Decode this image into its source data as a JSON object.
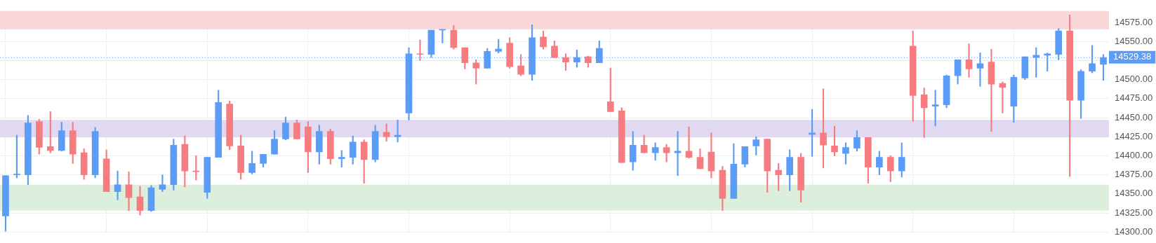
{
  "chart_data": {
    "type": "candlestick",
    "categories": [
      null,
      null,
      null,
      null,
      null,
      null,
      null,
      null,
      null,
      null,
      null,
      null,
      null,
      null,
      null,
      null,
      null,
      null,
      null,
      null,
      null,
      null,
      null,
      null,
      null,
      null,
      null,
      null,
      null,
      null,
      null,
      null,
      null,
      null,
      null,
      null,
      null,
      null,
      null,
      null,
      null,
      null,
      null,
      null,
      null,
      null,
      null,
      null,
      null,
      null,
      null,
      null,
      null,
      null,
      null,
      null,
      null,
      null,
      null,
      null,
      null,
      null,
      null,
      null,
      null,
      null,
      null,
      null,
      null,
      null,
      null,
      null,
      null,
      null,
      null,
      null,
      null,
      null,
      null,
      null,
      null,
      null,
      null,
      null,
      null,
      null,
      null,
      null,
      null,
      null,
      null,
      null,
      null,
      null,
      null,
      null,
      null,
      null,
      null
    ],
    "ohlc": [
      [
        14321,
        14374,
        14301,
        14374
      ],
      [
        14375,
        14427,
        14371,
        14376
      ],
      [
        14375,
        14453,
        14362,
        14443
      ],
      [
        14445,
        14448,
        14402,
        14411
      ],
      [
        14412,
        14458,
        14404,
        14407
      ],
      [
        14407,
        14444,
        14406,
        14433
      ],
      [
        14433,
        14444,
        14390,
        14402
      ],
      [
        14404,
        14409,
        14369,
        14375
      ],
      [
        14375,
        14437,
        14371,
        14432
      ],
      [
        14396,
        14408,
        14353,
        14353
      ],
      [
        14353,
        14380,
        14342,
        14362
      ],
      [
        14362,
        14379,
        14328,
        14345
      ],
      [
        14346,
        14360,
        14322,
        14328
      ],
      [
        14328,
        14361,
        14327,
        14358
      ],
      [
        14356,
        14375,
        14353,
        14362
      ],
      [
        14362,
        14422,
        14355,
        14414
      ],
      [
        14415,
        14426,
        14359,
        14380
      ],
      [
        14380,
        14400,
        14368,
        14379
      ],
      [
        14352,
        14398,
        14344,
        14398
      ],
      [
        14398,
        14486,
        14398,
        14470
      ],
      [
        14468,
        14472,
        14408,
        14413
      ],
      [
        14413,
        14427,
        14369,
        14378
      ],
      [
        14378,
        14406,
        14376,
        14390
      ],
      [
        14390,
        14402,
        14385,
        14402
      ],
      [
        14402,
        14433,
        14402,
        14422
      ],
      [
        14422,
        14451,
        14421,
        14443
      ],
      [
        14443,
        14447,
        14422,
        14422
      ],
      [
        14438,
        14445,
        14378,
        14405
      ],
      [
        14405,
        14440,
        14389,
        14432
      ],
      [
        14432,
        14435,
        14389,
        14396
      ],
      [
        14396,
        14407,
        14385,
        14398
      ],
      [
        14398,
        14426,
        14389,
        14418
      ],
      [
        14418,
        14421,
        14364,
        14395
      ],
      [
        14395,
        14440,
        14392,
        14432
      ],
      [
        14431,
        14442,
        14419,
        14425
      ],
      [
        14425,
        14447,
        14418,
        14427
      ],
      [
        14456,
        14542,
        14447,
        14534
      ],
      [
        14534,
        14552,
        14525,
        14533
      ],
      [
        14533,
        14565,
        14529,
        14565
      ],
      [
        14565,
        14566,
        14548,
        14565
      ],
      [
        14565,
        14571,
        14540,
        14542
      ],
      [
        14542,
        14542,
        14514,
        14522
      ],
      [
        14522,
        14526,
        14494,
        14515
      ],
      [
        14515,
        14541,
        14515,
        14537
      ],
      [
        14537,
        14553,
        14535,
        14540
      ],
      [
        14548,
        14555,
        14515,
        14517
      ],
      [
        14518,
        14533,
        14505,
        14507
      ],
      [
        14507,
        14572,
        14499,
        14555
      ],
      [
        14556,
        14564,
        14540,
        14543
      ],
      [
        14544,
        14551,
        14529,
        14529
      ],
      [
        14529,
        14534,
        14512,
        14523
      ],
      [
        14523,
        14539,
        14516,
        14529
      ],
      [
        14530,
        14531,
        14516,
        14522
      ],
      [
        14522,
        14551,
        14522,
        14541
      ],
      [
        14471,
        14515,
        14458,
        14458
      ],
      [
        14459,
        14463,
        14391,
        14391
      ],
      [
        14392,
        14432,
        14381,
        14414
      ],
      [
        14414,
        14427,
        14404,
        14404
      ],
      [
        14404,
        14417,
        14394,
        14411
      ],
      [
        14411,
        14415,
        14392,
        14404
      ],
      [
        14404,
        14432,
        14374,
        14406
      ],
      [
        14406,
        14438,
        14397,
        14398
      ],
      [
        14398,
        14409,
        14383,
        14383
      ],
      [
        14405,
        14430,
        14371,
        14380
      ],
      [
        14381,
        14386,
        14328,
        14344
      ],
      [
        14344,
        14416,
        14344,
        14389
      ],
      [
        14389,
        14412,
        14385,
        14412
      ],
      [
        14413,
        14425,
        14401,
        14421
      ],
      [
        14422,
        14422,
        14352,
        14380
      ],
      [
        14381,
        14390,
        14354,
        14375
      ],
      [
        14375,
        14408,
        14354,
        14398
      ],
      [
        14398,
        14403,
        14339,
        14355
      ],
      [
        14428,
        14461,
        14399,
        14430
      ],
      [
        14430,
        14488,
        14384,
        14414
      ],
      [
        14413,
        14439,
        14400,
        14405
      ],
      [
        14403,
        14417,
        14389,
        14411
      ],
      [
        14410,
        14433,
        14406,
        14424
      ],
      [
        14424,
        14424,
        14364,
        14385
      ],
      [
        14385,
        14406,
        14375,
        14398
      ],
      [
        14398,
        14400,
        14366,
        14380
      ],
      [
        14380,
        14417,
        14372,
        14398
      ],
      [
        14544,
        14564,
        14445,
        14479
      ],
      [
        14480,
        14489,
        14424,
        14463
      ],
      [
        14465,
        14486,
        14439,
        14467
      ],
      [
        14467,
        14506,
        14463,
        14505
      ],
      [
        14505,
        14526,
        14494,
        14526
      ],
      [
        14526,
        14547,
        14503,
        14514
      ],
      [
        14515,
        14535,
        14491,
        14521
      ],
      [
        14523,
        14540,
        14432,
        14494
      ],
      [
        14495,
        14497,
        14456,
        14490
      ],
      [
        14465,
        14506,
        14444,
        14503
      ],
      [
        14502,
        14530,
        14500,
        14530
      ],
      [
        14529,
        14542,
        14503,
        14532
      ],
      [
        14532,
        14535,
        14511,
        14534
      ],
      [
        14533,
        14567,
        14526,
        14564
      ],
      [
        14564,
        14585,
        14373,
        14473
      ],
      [
        14473,
        14513,
        14449,
        14511
      ],
      [
        14511,
        14545,
        14509,
        14521
      ],
      [
        14520,
        14533,
        14499,
        14529
      ]
    ],
    "colors": [
      "#5b9cf6",
      "#5b9cf6",
      "#5b9cf6",
      "#f77c80",
      "#f77c80",
      "#5b9cf6",
      "#f77c80",
      "#f77c80",
      "#5b9cf6",
      "#f77c80",
      "#5b9cf6",
      "#f77c80",
      "#f77c80",
      "#5b9cf6",
      "#5b9cf6",
      "#5b9cf6",
      "#f77c80",
      "#f77c80",
      "#5b9cf6",
      "#5b9cf6",
      "#f77c80",
      "#f77c80",
      "#5b9cf6",
      "#5b9cf6",
      "#5b9cf6",
      "#5b9cf6",
      "#f77c80",
      "#f77c80",
      "#5b9cf6",
      "#f77c80",
      "#5b9cf6",
      "#5b9cf6",
      "#f77c80",
      "#5b9cf6",
      "#f77c80",
      "#5b9cf6",
      "#5b9cf6",
      "#f77c80",
      "#5b9cf6",
      "#5b9cf6",
      "#f77c80",
      "#f77c80",
      "#f77c80",
      "#5b9cf6",
      "#5b9cf6",
      "#f77c80",
      "#f77c80",
      "#5b9cf6",
      "#f77c80",
      "#f77c80",
      "#f77c80",
      "#5b9cf6",
      "#f77c80",
      "#5b9cf6",
      "#f77c80",
      "#f77c80",
      "#5b9cf6",
      "#f77c80",
      "#5b9cf6",
      "#f77c80",
      "#5b9cf6",
      "#f77c80",
      "#f77c80",
      "#f77c80",
      "#f77c80",
      "#5b9cf6",
      "#5b9cf6",
      "#5b9cf6",
      "#f77c80",
      "#f77c80",
      "#5b9cf6",
      "#f77c80",
      "#5b9cf6",
      "#f77c80",
      "#f77c80",
      "#5b9cf6",
      "#5b9cf6",
      "#f77c80",
      "#5b9cf6",
      "#f77c80",
      "#5b9cf6",
      "#f77c80",
      "#f77c80",
      "#5b9cf6",
      "#5b9cf6",
      "#5b9cf6",
      "#f77c80",
      "#5b9cf6",
      "#f77c80",
      "#f77c80",
      "#5b9cf6",
      "#5b9cf6",
      "#5b9cf6",
      "#5b9cf6",
      "#5b9cf6",
      "#f77c80",
      "#5b9cf6",
      "#5b9cf6",
      "#5b9cf6"
    ],
    "ylim": [
      14300,
      14590
    ],
    "yticks": [
      {
        "value": 14300,
        "label": "14300.00"
      },
      {
        "value": 14325,
        "label": "14325.00"
      },
      {
        "value": 14350,
        "label": "14350.00"
      },
      {
        "value": 14375,
        "label": "14375.00"
      },
      {
        "value": 14400,
        "label": "14400.00"
      },
      {
        "value": 14425,
        "label": "14425.00"
      },
      {
        "value": 14450,
        "label": "14450.00"
      },
      {
        "value": 14475,
        "label": "14475.00"
      },
      {
        "value": 14500,
        "label": "14500.00"
      },
      {
        "value": 14525,
        "label": null
      },
      {
        "value": 14550,
        "label": "14550.00"
      },
      {
        "value": 14575,
        "label": "14575.00"
      }
    ],
    "bands": [
      {
        "axis": "y",
        "from": 14566,
        "to": 14590,
        "color": "#fad7d9"
      },
      {
        "axis": "y",
        "from": 14424,
        "to": 14447,
        "color": "#e1d9f1"
      },
      {
        "axis": "y",
        "from": 14328,
        "to": 14362,
        "color": "#dcefdc"
      }
    ],
    "ref_lines": [
      {
        "axis": "y",
        "value": 14529.38,
        "label": "14529.38",
        "color": "#5b9cf6",
        "line_style": "dotted"
      }
    ],
    "grid": true,
    "tick_labels": "y",
    "legend": false
  }
}
